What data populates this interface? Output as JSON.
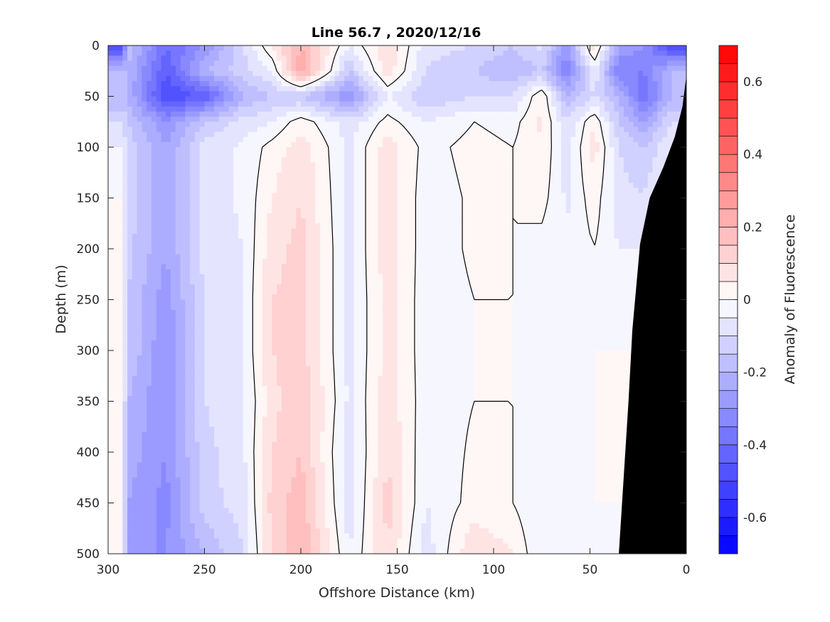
{
  "chart_data": {
    "type": "heatmap",
    "subtype": "filled-contour-section",
    "title": "Line 56.7 , 2020/12/16",
    "xlabel": "Offshore Distance (km)",
    "ylabel": "Depth (m)",
    "colorbar_label": "Anomaly of Fluorescence",
    "xlim": [
      300,
      0
    ],
    "ylim": [
      500,
      0
    ],
    "x_reversed": true,
    "y_reversed": true,
    "x_ticks": [
      300,
      250,
      200,
      150,
      100,
      50,
      0
    ],
    "y_ticks": [
      0,
      50,
      100,
      150,
      200,
      250,
      300,
      350,
      400,
      450,
      500
    ],
    "colorbar_range": [
      -0.7,
      0.7
    ],
    "colorbar_step": 0.05,
    "colorbar_ticks": [
      0.6,
      0.4,
      0.2,
      0,
      -0.2,
      -0.4,
      -0.6
    ],
    "colorbar_tick_labels": [
      "0.6",
      "0.4",
      "0.2",
      "0",
      "-0.2",
      "-0.4",
      "-0.6"
    ],
    "colormap": {
      "low": "#0000ff",
      "mid": "#ffffff",
      "high": "#ff0000"
    },
    "zero_contour": "black line",
    "bottom_mask_color": "#000000",
    "bathymetry": [
      [
        35,
        500
      ],
      [
        30,
        350
      ],
      [
        28,
        280
      ],
      [
        24,
        195
      ],
      [
        19,
        150
      ],
      [
        12,
        120
      ],
      [
        6,
        90
      ],
      [
        2,
        60
      ],
      [
        0,
        30
      ]
    ],
    "depth_levels": [
      0,
      25,
      50,
      75,
      100,
      150,
      200,
      250,
      300,
      350,
      400,
      450,
      500
    ],
    "stations": [
      {
        "x": 290,
        "values": [
          -0.15,
          -0.2,
          -0.2,
          -0.15,
          -0.12,
          -0.12,
          -0.13,
          -0.15,
          -0.15,
          -0.2,
          -0.22,
          -0.25,
          -0.3
        ]
      },
      {
        "x": 270,
        "values": [
          -0.4,
          -0.45,
          -0.5,
          -0.3,
          -0.25,
          -0.25,
          -0.25,
          -0.28,
          -0.3,
          -0.3,
          -0.3,
          -0.32,
          -0.3
        ]
      },
      {
        "x": 250,
        "values": [
          -0.3,
          -0.2,
          -0.45,
          -0.15,
          -0.08,
          -0.08,
          -0.08,
          -0.1,
          -0.1,
          -0.1,
          -0.12,
          -0.12,
          -0.2
        ]
      },
      {
        "x": 230,
        "values": [
          -0.1,
          -0.12,
          -0.2,
          -0.08,
          -0.04,
          -0.04,
          -0.05,
          -0.05,
          -0.05,
          -0.06,
          -0.06,
          -0.08,
          -0.1
        ]
      },
      {
        "x": 215,
        "values": [
          0.05,
          -0.05,
          -0.15,
          -0.05,
          0.02,
          0.05,
          0.08,
          0.1,
          0.1,
          0.08,
          0.1,
          0.12,
          0.1
        ]
      },
      {
        "x": 200,
        "values": [
          0.2,
          0.25,
          -0.15,
          0.03,
          0.08,
          0.1,
          0.12,
          0.12,
          0.12,
          0.15,
          0.15,
          0.18,
          0.2
        ]
      },
      {
        "x": 175,
        "values": [
          -0.05,
          -0.15,
          -0.3,
          -0.08,
          -0.06,
          -0.06,
          -0.06,
          -0.06,
          -0.06,
          -0.06,
          -0.08,
          -0.08,
          -0.05
        ]
      },
      {
        "x": 155,
        "values": [
          0.1,
          0.08,
          -0.05,
          0.02,
          0.08,
          0.08,
          0.08,
          0.07,
          0.07,
          0.08,
          0.1,
          0.12,
          0.1
        ]
      },
      {
        "x": 135,
        "values": [
          -0.08,
          -0.1,
          -0.15,
          -0.05,
          -0.02,
          -0.03,
          -0.03,
          -0.03,
          -0.03,
          -0.03,
          -0.04,
          -0.05,
          -0.08
        ]
      },
      {
        "x": 110,
        "values": [
          -0.1,
          -0.15,
          -0.1,
          0.0,
          0.02,
          0.01,
          0.01,
          0.0,
          0.0,
          0.0,
          0.01,
          0.02,
          0.1
        ]
      },
      {
        "x": 90,
        "values": [
          -0.15,
          -0.2,
          -0.1,
          -0.02,
          0.0,
          0.0,
          0.0,
          0.0,
          0.0,
          0.0,
          0.0,
          0.0,
          0.05
        ]
      },
      {
        "x": 75,
        "values": [
          -0.08,
          -0.15,
          0.05,
          0.06,
          0.05,
          0.02,
          -0.02,
          -0.04,
          -0.04,
          -0.04,
          -0.04,
          -0.05,
          -0.05
        ]
      },
      {
        "x": 62,
        "values": [
          -0.3,
          -0.35,
          -0.2,
          -0.1,
          -0.08,
          -0.06,
          -0.05,
          -0.04,
          -0.04,
          -0.04,
          -0.04,
          -0.05,
          -0.05
        ]
      },
      {
        "x": 48,
        "values": [
          0.1,
          -0.05,
          -0.1,
          0.05,
          0.08,
          0.03,
          0.0,
          0.0,
          0.0,
          0.0,
          0.0,
          0.0,
          -0.05
        ]
      },
      {
        "x": 35,
        "values": [
          -0.25,
          -0.35,
          -0.2,
          -0.15,
          -0.1,
          -0.08,
          -0.05,
          -0.02,
          0.0,
          0.0,
          0.0,
          0.0,
          0.0
        ]
      },
      {
        "x": 22,
        "values": [
          -0.3,
          -0.35,
          -0.4,
          -0.25,
          -0.15,
          -0.1,
          -0.05,
          0.0,
          0.0,
          0.0,
          0.0,
          0.0,
          0.0
        ]
      },
      {
        "x": 8,
        "values": [
          -0.5,
          -0.2,
          -0.2,
          -0.1,
          -0.05,
          0.0,
          0.0,
          0.0,
          0.0,
          0.0,
          0.0,
          0.0,
          0.0
        ]
      },
      {
        "x": 0,
        "values": [
          -0.5,
          -0.2,
          -0.2,
          -0.1,
          -0.05,
          0.0,
          0.0,
          0.0,
          0.0,
          0.0,
          0.0,
          0.0,
          0.0
        ]
      }
    ]
  }
}
